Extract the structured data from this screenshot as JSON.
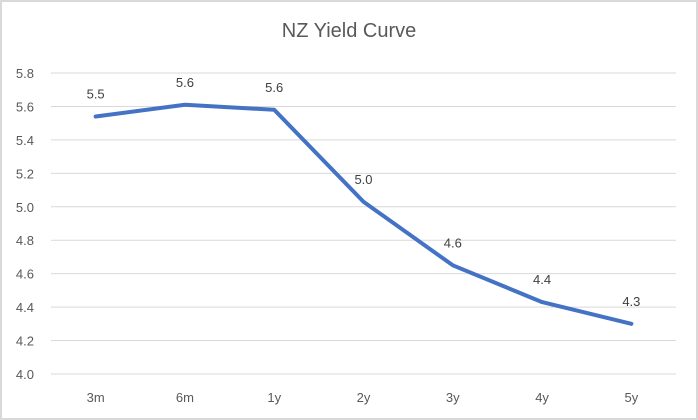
{
  "chart_data": {
    "type": "line",
    "title": "NZ Yield Curve",
    "xlabel": "",
    "ylabel": "",
    "categories": [
      "3m",
      "6m",
      "1y",
      "2y",
      "3y",
      "4y",
      "5y"
    ],
    "series": [
      {
        "name": "NZ Yield",
        "values": [
          5.54,
          5.61,
          5.58,
          5.03,
          4.65,
          4.43,
          4.3
        ],
        "data_labels": [
          "5.5",
          "5.6",
          "5.6",
          "5.0",
          "4.6",
          "4.4",
          "4.3"
        ],
        "color": "#4472c4"
      }
    ],
    "ylim": [
      4.0,
      5.8
    ],
    "yticks": [
      "4.0",
      "4.2",
      "4.4",
      "4.6",
      "4.8",
      "5.0",
      "5.2",
      "5.4",
      "5.6",
      "5.8"
    ],
    "grid": true,
    "legend": "none"
  },
  "colors": {
    "line": "#4472c4",
    "grid": "#d9d9d9",
    "text": "#595959",
    "border": "#d9d9d9"
  }
}
